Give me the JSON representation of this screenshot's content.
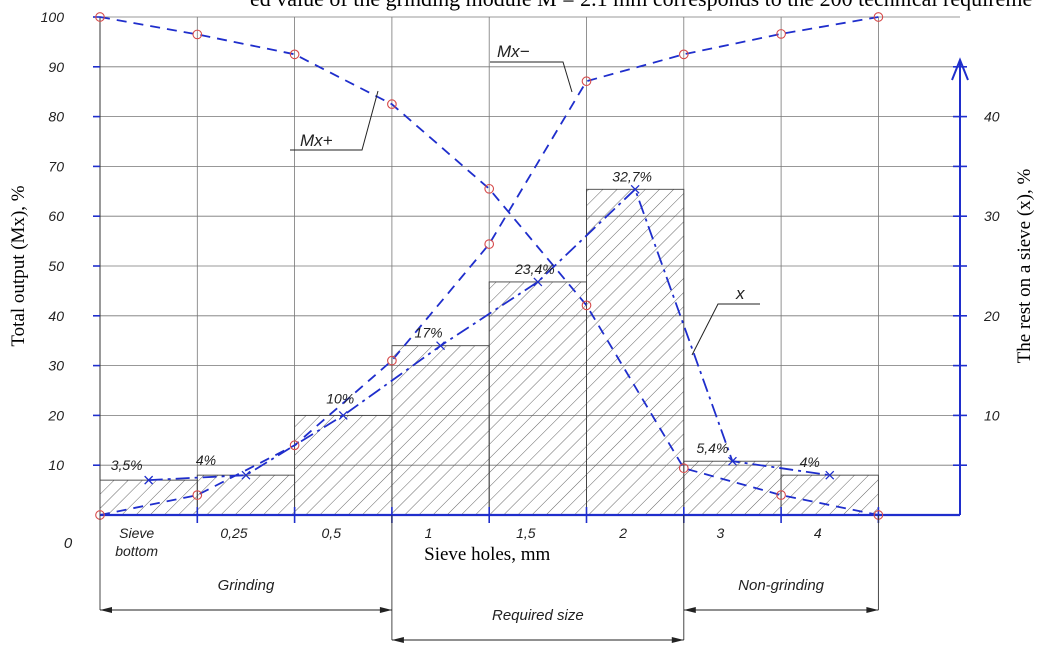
{
  "header_text": "ed value of the grinding module M = 2.1 mm corresponds to the 200 technical requireme",
  "chart_data": {
    "type": "line+bar",
    "xlabel": "Sieve holes, mm",
    "ylabel_left": "Total output (Mx), %",
    "ylabel_right": "The rest on a sieve (x), %",
    "origin_label": "0",
    "categories": [
      "Sieve bottom",
      "0,25",
      "0,5",
      "1",
      "1,5",
      "2",
      "3",
      "4"
    ],
    "y_left_ticks": [
      10,
      20,
      30,
      40,
      50,
      60,
      70,
      80,
      90,
      100
    ],
    "y_left_lim": [
      0,
      100
    ],
    "y_right_ticks": [
      10,
      20,
      30,
      40
    ],
    "y_right_lim": [
      0,
      50
    ],
    "bars": {
      "name": "x",
      "values": [
        3.5,
        4,
        10,
        17,
        23.4,
        32.7,
        5.4,
        4
      ],
      "labels": [
        "3,5%",
        "4%",
        "10%",
        "17%",
        "23,4%",
        "32,7%",
        "5,4%",
        "4%"
      ]
    },
    "series": [
      {
        "name": "Mx+",
        "x": [
          0,
          1,
          2,
          3,
          4,
          5,
          6,
          7,
          8
        ],
        "values": [
          100,
          96.5,
          92.5,
          82.5,
          65.5,
          42.1,
          9.4,
          4.0,
          0
        ]
      },
      {
        "name": "Mx−",
        "x": [
          0,
          1,
          2,
          3,
          4,
          5,
          6,
          7,
          8
        ],
        "values": [
          0,
          4.0,
          14.0,
          31.0,
          54.4,
          87.1,
          92.5,
          96.6,
          100
        ]
      },
      {
        "name": "x",
        "x": [
          0.5,
          1.5,
          2.5,
          3.5,
          4.5,
          5.5,
          6.5,
          7.5
        ],
        "values": [
          3.5,
          4,
          10,
          17,
          23.4,
          32.7,
          5.4,
          4
        ]
      }
    ],
    "ranges": [
      {
        "label": "Grinding",
        "from": 0,
        "to": 3
      },
      {
        "label": "Required size",
        "from": 3,
        "to": 6
      },
      {
        "label": "Non-grinding",
        "from": 6,
        "to": 8
      }
    ],
    "grid": true
  },
  "colors": {
    "curve": "#1f2ecc",
    "marker": "#d64a4a",
    "grid": "#777777",
    "hatch": "#555555"
  }
}
